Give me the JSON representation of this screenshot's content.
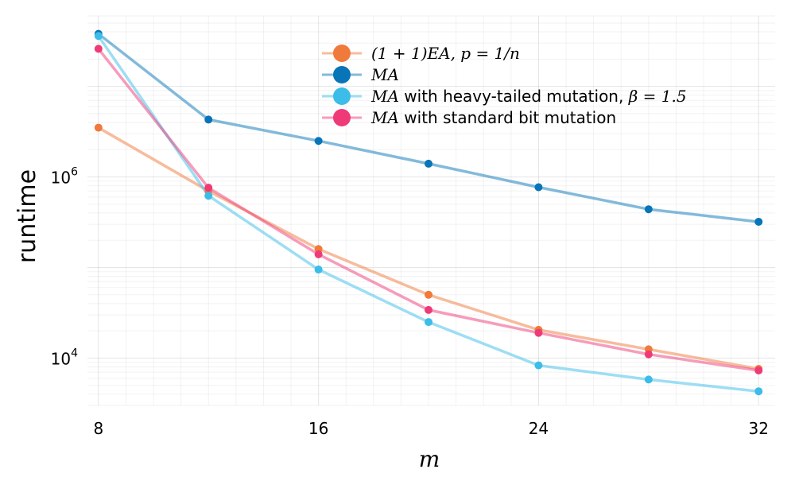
{
  "chart_data": {
    "type": "line",
    "title": "",
    "xlabel": "m",
    "ylabel": "runtime",
    "xscale": "linear",
    "yscale": "log",
    "xlim": [
      7.6,
      32.6
    ],
    "ylim": [
      3000,
      60000000
    ],
    "xticks": [
      8,
      16,
      24,
      32
    ],
    "xtick_labels": [
      "8",
      "16",
      "24",
      "32"
    ],
    "yticks": [
      10000,
      1000000
    ],
    "ytick_labels": [
      {
        "base": "10",
        "exp": "4"
      },
      {
        "base": "10",
        "exp": "6"
      }
    ],
    "grid": true,
    "legend_position": "top-center",
    "x": [
      8,
      12,
      16,
      20,
      24,
      28,
      32
    ],
    "series": [
      {
        "name": "(1+1)EA, p=1/n",
        "legend_parts": [
          {
            "text": "(1 + 1)EA, p = 1/n",
            "math": true
          }
        ],
        "color": "#f07a3b",
        "values": [
          3500000,
          700000,
          160000,
          50000,
          20500,
          12500,
          7600
        ]
      },
      {
        "name": "MA",
        "legend_parts": [
          {
            "text": "MA",
            "math": true
          }
        ],
        "color": "#0875b8",
        "values": [
          38000000,
          4300000,
          2500000,
          1400000,
          770000,
          440000,
          320000
        ]
      },
      {
        "name": "MA with heavy-tailed mutation, β=1.5",
        "legend_parts": [
          {
            "text": "MA",
            "math": true
          },
          {
            "text": " with heavy-tailed mutation, ",
            "math": false
          },
          {
            "text": "β = 1.5",
            "math": true
          }
        ],
        "color": "#3cbde9",
        "values": [
          36000000,
          620000,
          95000,
          25000,
          8300,
          5800,
          4300
        ]
      },
      {
        "name": "MA with standard bit mutation",
        "legend_parts": [
          {
            "text": "MA",
            "math": true
          },
          {
            "text": " with standard bit mutation",
            "math": false
          }
        ],
        "color": "#ef3a78",
        "values": [
          26000000,
          760000,
          140000,
          34000,
          19000,
          11000,
          7300
        ]
      }
    ]
  }
}
